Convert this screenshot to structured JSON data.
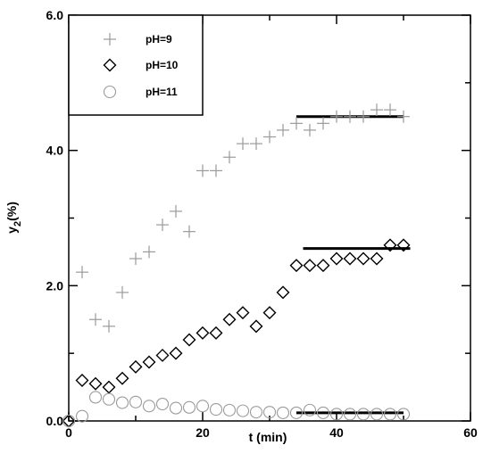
{
  "chart_data": {
    "type": "scatter",
    "title": "",
    "xlabel": "t (min)",
    "ylabel_main": "y",
    "ylabel_sub": "2",
    "ylabel_suffix": "(%)",
    "xlim": [
      0,
      60
    ],
    "ylim": [
      0,
      6
    ],
    "x_ticks": [
      0,
      20,
      40,
      60
    ],
    "x_tick_labels": [
      "0",
      "20",
      "40",
      "60"
    ],
    "y_ticks": [
      0,
      2,
      4,
      6
    ],
    "y_tick_labels": [
      "0.0",
      "2.0",
      "4.0",
      "6.0"
    ],
    "grid": false,
    "legend_position": "top-left",
    "series": [
      {
        "name": "pH=9",
        "marker": "plus",
        "color": "#9a9a9a",
        "x": [
          2,
          4,
          6,
          8,
          10,
          12,
          14,
          16,
          18,
          20,
          22,
          24,
          26,
          28,
          30,
          32,
          34,
          36,
          38,
          40,
          42,
          44,
          46,
          48,
          50
        ],
        "y": [
          2.2,
          1.5,
          1.4,
          1.9,
          2.4,
          2.5,
          2.9,
          3.1,
          2.8,
          3.7,
          3.7,
          3.9,
          4.1,
          4.1,
          4.2,
          4.3,
          4.4,
          4.3,
          4.4,
          4.5,
          4.5,
          4.5,
          4.6,
          4.6,
          4.5
        ]
      },
      {
        "name": "pH=10",
        "marker": "diamond",
        "color": "#000000",
        "x": [
          0,
          2,
          4,
          6,
          8,
          10,
          12,
          14,
          16,
          18,
          20,
          22,
          24,
          26,
          28,
          30,
          32,
          34,
          36,
          38,
          40,
          42,
          44,
          46,
          48,
          50
        ],
        "y": [
          0.0,
          0.6,
          0.55,
          0.5,
          0.63,
          0.8,
          0.87,
          0.97,
          1.0,
          1.2,
          1.3,
          1.3,
          1.5,
          1.6,
          1.4,
          1.6,
          1.9,
          2.3,
          2.3,
          2.3,
          2.4,
          2.4,
          2.4,
          2.4,
          2.6,
          2.6
        ]
      },
      {
        "name": "pH=11",
        "marker": "circle",
        "color": "#9a9a9a",
        "x": [
          0,
          2,
          4,
          6,
          8,
          10,
          12,
          14,
          16,
          18,
          20,
          22,
          24,
          26,
          28,
          30,
          32,
          34,
          36,
          38,
          40,
          42,
          44,
          46,
          48,
          50
        ],
        "y": [
          0.0,
          0.07,
          0.35,
          0.32,
          0.27,
          0.28,
          0.22,
          0.25,
          0.19,
          0.2,
          0.22,
          0.17,
          0.16,
          0.15,
          0.13,
          0.13,
          0.12,
          0.12,
          0.16,
          0.12,
          0.1,
          0.1,
          0.1,
          0.1,
          0.1,
          0.1
        ]
      }
    ],
    "equilibrium_lines": [
      {
        "x_start": 34,
        "x_end": 50,
        "y": 4.5,
        "color": "#000000"
      },
      {
        "x_start": 35,
        "x_end": 51,
        "y": 2.55,
        "color": "#000000"
      },
      {
        "x_start": 34,
        "x_end": 50,
        "y": 0.12,
        "color": "#000000"
      }
    ]
  }
}
